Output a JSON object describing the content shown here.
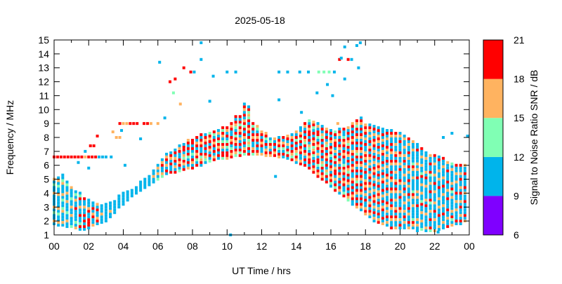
{
  "chart_data": {
    "type": "scatter",
    "title": "2025-05-18",
    "xlabel": "UT Time / hrs",
    "ylabel": "Frequency / MHz",
    "xlim": [
      0,
      24
    ],
    "ylim": [
      1,
      15
    ],
    "xticks": [
      {
        "v": 0,
        "l": "00"
      },
      {
        "v": 2,
        "l": "02"
      },
      {
        "v": 4,
        "l": "04"
      },
      {
        "v": 6,
        "l": "06"
      },
      {
        "v": 8,
        "l": "08"
      },
      {
        "v": 10,
        "l": "10"
      },
      {
        "v": 12,
        "l": "12"
      },
      {
        "v": 14,
        "l": "14"
      },
      {
        "v": 16,
        "l": "16"
      },
      {
        "v": 18,
        "l": "18"
      },
      {
        "v": 20,
        "l": "20"
      },
      {
        "v": 22,
        "l": "22"
      },
      {
        "v": 24,
        "l": "00"
      }
    ],
    "yticks": [
      1,
      2,
      3,
      4,
      5,
      6,
      7,
      8,
      9,
      10,
      11,
      12,
      13,
      14,
      15
    ],
    "colorbar": {
      "label": "Signal to Noise Ratio SNR / dB",
      "ticks": [
        "6",
        "9",
        "12",
        "15",
        "18",
        "21"
      ],
      "bins": [
        {
          "code": 0,
          "range": [
            6,
            9
          ],
          "color": "#7f00ff"
        },
        {
          "code": 1,
          "range": [
            9,
            12
          ],
          "color": "#00b4eb"
        },
        {
          "code": 2,
          "range": [
            12,
            15
          ],
          "color": "#80ffb4"
        },
        {
          "code": 3,
          "range": [
            15,
            18
          ],
          "color": "#ffb360"
        },
        {
          "code": 4,
          "range": [
            18,
            21
          ],
          "color": "#ff0000"
        }
      ]
    },
    "freq_step_mhz": 0.2,
    "columns_note": "each column: [UT hour, low MHz, high MHz, SNR-bin codes cycled over 0.2 MHz cells]",
    "columns": [
      [
        0.0,
        1.8,
        5.0,
        "1311213111"
      ],
      [
        0.25,
        1.7,
        5.2,
        "1131121311"
      ],
      [
        0.5,
        1.7,
        5.3,
        "1213111321"
      ],
      [
        0.75,
        1.6,
        4.9,
        "1131131121"
      ],
      [
        1.0,
        1.6,
        4.5,
        "1311211131"
      ],
      [
        1.25,
        1.5,
        4.2,
        "1141131211"
      ],
      [
        1.5,
        1.4,
        4.0,
        "1411311421"
      ],
      [
        1.75,
        1.4,
        3.6,
        "4141131141"
      ],
      [
        2.0,
        1.5,
        3.5,
        "4411431114"
      ],
      [
        2.25,
        1.7,
        3.3,
        "1143141113"
      ],
      [
        2.5,
        1.8,
        3.2,
        "1431141311"
      ],
      [
        2.75,
        1.9,
        3.2,
        "1111311111"
      ],
      [
        3.0,
        2.0,
        3.2,
        "1111111111"
      ],
      [
        3.25,
        2.3,
        3.3,
        "1111131111"
      ],
      [
        3.5,
        2.6,
        3.5,
        "1111111111"
      ],
      [
        3.75,
        3.0,
        3.8,
        "1111111111"
      ],
      [
        4.0,
        3.2,
        4.0,
        "1111111111"
      ],
      [
        4.25,
        3.5,
        4.2,
        "1131111111"
      ],
      [
        4.5,
        3.8,
        4.3,
        "1113111111"
      ],
      [
        4.75,
        4.0,
        4.5,
        "1111111111"
      ],
      [
        5.0,
        4.2,
        4.8,
        "1111111111"
      ],
      [
        5.25,
        4.4,
        5.0,
        "1111111111"
      ],
      [
        5.5,
        4.6,
        5.2,
        "1111111111"
      ],
      [
        5.75,
        4.8,
        5.6,
        "1111131111"
      ],
      [
        6.0,
        5.0,
        6.0,
        "1311213131"
      ],
      [
        6.25,
        5.2,
        6.4,
        "3134123114"
      ],
      [
        6.5,
        5.4,
        6.8,
        "1431431413"
      ],
      [
        6.75,
        5.5,
        7.0,
        "4134143411"
      ],
      [
        7.0,
        5.5,
        7.2,
        "3143141341"
      ],
      [
        7.25,
        5.6,
        7.4,
        "1434114312"
      ],
      [
        7.5,
        5.7,
        7.6,
        "4134231441"
      ],
      [
        7.75,
        5.8,
        7.8,
        "4314124141"
      ],
      [
        8.0,
        5.8,
        7.8,
        "1441341214"
      ],
      [
        8.25,
        6.0,
        8.0,
        "4314124341"
      ],
      [
        8.5,
        6.0,
        8.2,
        "1434143241"
      ],
      [
        8.75,
        6.2,
        8.3,
        "4143412341"
      ],
      [
        9.0,
        6.3,
        8.3,
        "3414342141"
      ],
      [
        9.25,
        6.4,
        8.4,
        "4143412431"
      ],
      [
        9.5,
        6.5,
        8.5,
        "1434241314"
      ],
      [
        9.75,
        6.5,
        8.7,
        "4413421342"
      ],
      [
        10.0,
        6.5,
        8.8,
        "3441242141"
      ],
      [
        10.25,
        6.6,
        9.1,
        "1434214341"
      ],
      [
        10.5,
        6.7,
        9.5,
        "4123414342"
      ],
      [
        10.75,
        6.7,
        9.6,
        "1434241413"
      ],
      [
        11.0,
        6.8,
        10.5,
        "3414243141"
      ],
      [
        11.25,
        6.8,
        10.2,
        "2414341423"
      ],
      [
        11.5,
        6.8,
        9.0,
        "1434142431"
      ],
      [
        11.75,
        6.8,
        8.9,
        "4143412341"
      ],
      [
        12.0,
        6.8,
        8.5,
        "1434143231"
      ],
      [
        12.25,
        6.7,
        8.3,
        "4314124343"
      ],
      [
        12.5,
        6.7,
        8.0,
        "3413421342"
      ],
      [
        12.75,
        6.7,
        8.0,
        "2434141342"
      ],
      [
        13.0,
        6.6,
        8.0,
        "1434124341"
      ],
      [
        13.25,
        6.6,
        8.1,
        "4341412431"
      ],
      [
        13.5,
        6.5,
        8.2,
        "1434142413"
      ],
      [
        13.75,
        6.4,
        8.3,
        "4143142341"
      ],
      [
        14.0,
        6.2,
        8.5,
        "3414241342"
      ],
      [
        14.25,
        6.1,
        8.7,
        "1434142431"
      ],
      [
        14.5,
        6.0,
        9.0,
        "4134142341"
      ],
      [
        14.75,
        5.8,
        9.3,
        "1443412314"
      ],
      [
        15.0,
        5.5,
        9.2,
        "4341412432"
      ],
      [
        15.25,
        5.2,
        9.0,
        "1434124413"
      ],
      [
        15.5,
        5.0,
        8.9,
        "4143414231"
      ],
      [
        15.75,
        4.8,
        8.7,
        "1434142314"
      ],
      [
        16.0,
        4.5,
        8.5,
        "3414124341"
      ],
      [
        16.25,
        4.2,
        8.5,
        "1443142413"
      ],
      [
        16.5,
        4.0,
        8.6,
        "4134141341"
      ],
      [
        16.75,
        3.8,
        8.7,
        "1434143421"
      ],
      [
        17.0,
        3.5,
        8.8,
        "4141341423"
      ],
      [
        17.25,
        3.2,
        9.0,
        "1434141431"
      ],
      [
        17.5,
        3.0,
        9.2,
        "3414134142"
      ],
      [
        17.75,
        2.8,
        9.5,
        "4134141341"
      ],
      [
        18.0,
        2.5,
        9.0,
        "1434311413"
      ],
      [
        18.25,
        2.3,
        9.0,
        "4131341431"
      ],
      [
        18.5,
        2.0,
        8.8,
        "1434131413"
      ],
      [
        18.75,
        1.9,
        8.8,
        "3141343141"
      ],
      [
        19.0,
        1.8,
        8.7,
        "1431413141"
      ],
      [
        19.25,
        1.7,
        8.6,
        "4131341131"
      ],
      [
        19.5,
        1.5,
        8.5,
        "1341134141"
      ],
      [
        19.75,
        1.5,
        8.4,
        "1134143113"
      ],
      [
        20.0,
        1.5,
        8.3,
        "1413113411"
      ],
      [
        20.25,
        1.5,
        8.2,
        "3113141311"
      ],
      [
        20.5,
        1.5,
        8.0,
        "1131411314"
      ],
      [
        20.75,
        1.5,
        7.8,
        "1311342111"
      ],
      [
        21.0,
        1.5,
        7.5,
        "1141131311"
      ],
      [
        21.25,
        1.4,
        7.3,
        "1311421131"
      ],
      [
        21.5,
        1.3,
        7.0,
        "1131141311"
      ],
      [
        21.75,
        1.3,
        6.8,
        "1411311241"
      ],
      [
        22.0,
        1.3,
        6.7,
        "1131141131"
      ],
      [
        22.25,
        1.4,
        6.6,
        "3111411311"
      ],
      [
        22.5,
        1.5,
        6.5,
        "1131141131"
      ],
      [
        22.75,
        1.6,
        6.3,
        "1411311411"
      ],
      [
        23.0,
        1.7,
        6.2,
        "1131241311"
      ],
      [
        23.25,
        1.8,
        6.1,
        "1311411131"
      ],
      [
        23.5,
        1.8,
        6.0,
        "4131141311"
      ],
      [
        23.75,
        2.0,
        6.0,
        "1141131411"
      ]
    ],
    "points_note": "sporadic points: [UT hour, MHz, SNR-bin code]",
    "points": [
      [
        0.0,
        6.6,
        4
      ],
      [
        0.2,
        6.6,
        4
      ],
      [
        0.4,
        6.6,
        4
      ],
      [
        0.6,
        6.6,
        4
      ],
      [
        0.8,
        6.6,
        4
      ],
      [
        1.0,
        6.6,
        4
      ],
      [
        1.2,
        6.6,
        4
      ],
      [
        1.4,
        6.6,
        4
      ],
      [
        1.6,
        6.6,
        4
      ],
      [
        1.8,
        6.6,
        3
      ],
      [
        2.0,
        6.6,
        4
      ],
      [
        2.2,
        6.6,
        4
      ],
      [
        2.4,
        6.6,
        4
      ],
      [
        2.6,
        6.6,
        1
      ],
      [
        2.8,
        6.6,
        1
      ],
      [
        3.0,
        6.6,
        1
      ],
      [
        3.3,
        6.6,
        1
      ],
      [
        3.8,
        9.0,
        4
      ],
      [
        4.0,
        9.0,
        3
      ],
      [
        4.2,
        9.0,
        3
      ],
      [
        4.4,
        9.0,
        4
      ],
      [
        4.6,
        9.0,
        4
      ],
      [
        4.8,
        9.0,
        4
      ],
      [
        5.2,
        9.0,
        4
      ],
      [
        5.4,
        9.0,
        4
      ],
      [
        5.6,
        9.0,
        3
      ],
      [
        6.0,
        9.0,
        3
      ],
      [
        3.6,
        8.0,
        3
      ],
      [
        3.8,
        8.0,
        3
      ],
      [
        3.4,
        8.4,
        3
      ],
      [
        3.9,
        8.5,
        1
      ],
      [
        8.5,
        14.8,
        1
      ],
      [
        8.5,
        13.6,
        1
      ],
      [
        6.1,
        13.4,
        1
      ],
      [
        7.5,
        13.0,
        4
      ],
      [
        6.7,
        12.0,
        4
      ],
      [
        7.0,
        12.2,
        4
      ],
      [
        7.9,
        12.7,
        4
      ],
      [
        8.1,
        12.7,
        1
      ],
      [
        9.2,
        12.4,
        1
      ],
      [
        10.0,
        12.7,
        1
      ],
      [
        10.5,
        12.7,
        1
      ],
      [
        9.0,
        10.6,
        1
      ],
      [
        13.0,
        12.7,
        1
      ],
      [
        13.5,
        12.7,
        1
      ],
      [
        14.2,
        12.7,
        1
      ],
      [
        14.7,
        12.7,
        1
      ],
      [
        15.3,
        12.7,
        2
      ],
      [
        15.6,
        12.7,
        2
      ],
      [
        15.9,
        12.7,
        2
      ],
      [
        16.2,
        12.7,
        1
      ],
      [
        15.2,
        11.2,
        1
      ],
      [
        15.8,
        11.8,
        1
      ],
      [
        16.1,
        11.0,
        1
      ],
      [
        16.5,
        13.6,
        4
      ],
      [
        16.6,
        13.7,
        1
      ],
      [
        16.8,
        14.5,
        1
      ],
      [
        17.0,
        13.6,
        4
      ],
      [
        17.2,
        13.6,
        1
      ],
      [
        17.5,
        14.6,
        1
      ],
      [
        17.7,
        14.8,
        1
      ],
      [
        17.6,
        13.0,
        1
      ],
      [
        16.8,
        12.2,
        1
      ],
      [
        16.4,
        9.0,
        3
      ],
      [
        6.9,
        11.2,
        2
      ],
      [
        7.3,
        10.4,
        3
      ],
      [
        6.4,
        9.4,
        1
      ],
      [
        2.5,
        8.1,
        4
      ],
      [
        2.1,
        7.4,
        4
      ],
      [
        2.3,
        7.4,
        4
      ],
      [
        1.8,
        7.0,
        1
      ],
      [
        1.4,
        6.2,
        1
      ],
      [
        2.0,
        5.8,
        1
      ],
      [
        4.1,
        6.0,
        1
      ],
      [
        5.0,
        7.9,
        1
      ],
      [
        10.2,
        1.0,
        1
      ],
      [
        12.8,
        5.2,
        1
      ],
      [
        22.5,
        8.0,
        1
      ],
      [
        23.0,
        8.3,
        1
      ],
      [
        23.9,
        8.1,
        1
      ],
      [
        21.0,
        1.3,
        1
      ],
      [
        22.2,
        1.2,
        1
      ],
      [
        14.3,
        9.8,
        1
      ],
      [
        13.0,
        10.7,
        1
      ]
    ]
  }
}
